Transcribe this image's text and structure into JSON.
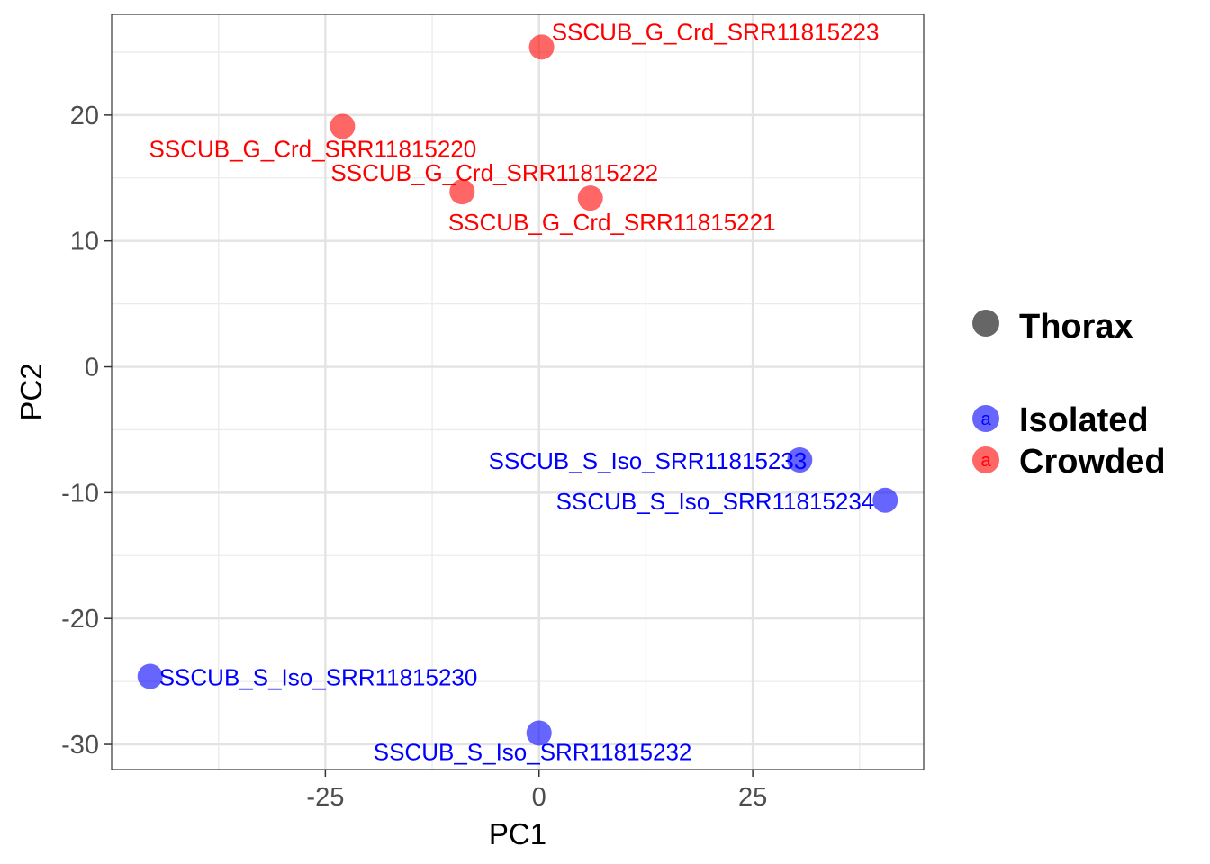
{
  "chart_data": {
    "type": "scatter",
    "xlabel": "PC1",
    "ylabel": "PC2",
    "xlim": [
      -50,
      45
    ],
    "ylim": [
      -32,
      28
    ],
    "x_ticks": [
      -25,
      0,
      25
    ],
    "y_ticks": [
      -30,
      -20,
      -10,
      0,
      10,
      20
    ],
    "grid": true,
    "legend_position": "right",
    "shape_legend": {
      "label": "Thorax",
      "color": "#666666"
    },
    "color_legend": [
      {
        "name": "Isolated",
        "color": "#0000ff",
        "key_text": "a"
      },
      {
        "name": "Crowded",
        "color": "#ff0000",
        "key_text": "a"
      }
    ],
    "series": [
      {
        "name": "Isolated",
        "color": "#0000ff",
        "points": [
          {
            "x": -45.5,
            "y": -24.6,
            "label": "SSCUB_S_Iso_SRR11815230"
          },
          {
            "x": 0.0,
            "y": -29.1,
            "label": "SSCUB_S_Iso_SRR11815232"
          },
          {
            "x": 30.5,
            "y": -7.4,
            "label": "SSCUB_S_Iso_SRR11815233"
          },
          {
            "x": 40.5,
            "y": -10.6,
            "label": "SSCUB_S_Iso_SRR11815234"
          }
        ]
      },
      {
        "name": "Crowded",
        "color": "#ff0000",
        "points": [
          {
            "x": -23.0,
            "y": 19.1,
            "label": "SSCUB_G_Crd_SRR11815220"
          },
          {
            "x": 6.0,
            "y": 13.4,
            "label": "SSCUB_G_Crd_SRR11815221"
          },
          {
            "x": -9.0,
            "y": 13.9,
            "label": "SSCUB_G_Crd_SRR11815222"
          },
          {
            "x": 0.3,
            "y": 25.4,
            "label": "SSCUB_G_Crd_SRR11815223"
          }
        ]
      }
    ]
  }
}
